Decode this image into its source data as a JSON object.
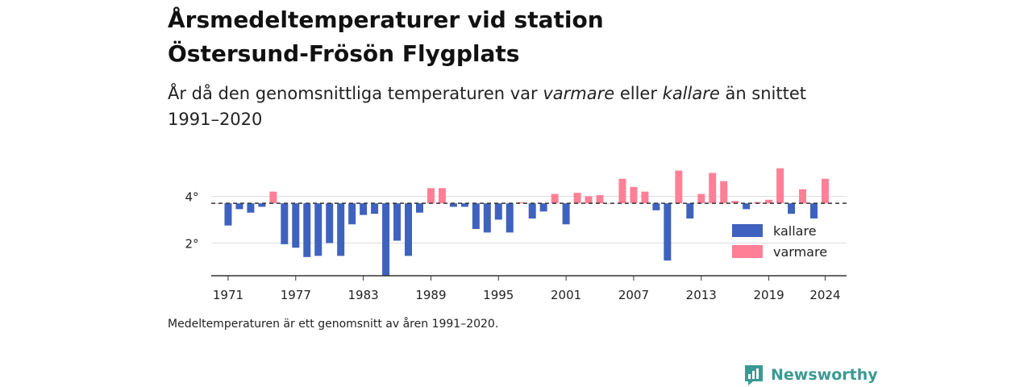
{
  "header": {
    "title_line1": "Årsmedeltemperaturer vid station",
    "title_line2": "Östersund-Frösön Flygplats",
    "subtitle_part1": "År då den genomsnittliga temperaturen var ",
    "subtitle_em1": "varmare",
    "subtitle_part2": " eller ",
    "subtitle_em2": "kallare",
    "subtitle_part3": " än snittet",
    "subtitle_line2": "1991–2020"
  },
  "footnote": "Medeltemperaturen är ett genomsnitt av åren 1991–2020.",
  "brand": {
    "name": "Newsworthy",
    "icon": "newsworthy-logo-icon",
    "color": "#3a9a93"
  },
  "colors": {
    "kallare": "#3f62bf",
    "varmare": "#ff8096",
    "baseline": "#333333",
    "grid": "#dddddd"
  },
  "chart_data": {
    "type": "bar",
    "baseline": 3.7,
    "ylim": [
      0.6,
      5.5
    ],
    "yticks": [
      {
        "value": 2,
        "label": "2°"
      },
      {
        "value": 4,
        "label": "4°"
      }
    ],
    "xticks": [
      1971,
      1977,
      1983,
      1989,
      1995,
      2001,
      2007,
      2013,
      2019,
      2024
    ],
    "grid": true,
    "legend_position": "bottom-right",
    "legend": [
      {
        "key": "kallare",
        "label": "kallare"
      },
      {
        "key": "varmare",
        "label": "varmare"
      }
    ],
    "x": [
      1970,
      1971,
      1972,
      1973,
      1974,
      1975,
      1976,
      1977,
      1978,
      1979,
      1980,
      1981,
      1982,
      1983,
      1984,
      1985,
      1986,
      1987,
      1988,
      1989,
      1990,
      1991,
      1992,
      1993,
      1994,
      1995,
      1996,
      1997,
      1998,
      1999,
      2000,
      2001,
      2002,
      2003,
      2004,
      2005,
      2006,
      2007,
      2008,
      2009,
      2010,
      2011,
      2012,
      2013,
      2014,
      2015,
      2016,
      2017,
      2018,
      2019,
      2020,
      2021,
      2022,
      2023,
      2024
    ],
    "values": [
      3.7,
      2.75,
      3.45,
      3.3,
      3.55,
      4.2,
      1.95,
      1.8,
      1.4,
      1.45,
      2.0,
      1.45,
      2.8,
      3.2,
      3.25,
      0.6,
      2.1,
      1.45,
      3.3,
      4.35,
      4.35,
      3.55,
      3.55,
      2.6,
      2.45,
      3.0,
      2.45,
      3.75,
      3.05,
      3.35,
      4.1,
      2.8,
      4.15,
      4.0,
      4.05,
      3.7,
      4.75,
      4.4,
      4.2,
      3.4,
      1.25,
      5.1,
      3.05,
      4.1,
      5.0,
      4.65,
      3.8,
      3.45,
      3.75,
      3.85,
      5.2,
      3.25,
      4.3,
      3.05,
      4.75
    ]
  }
}
